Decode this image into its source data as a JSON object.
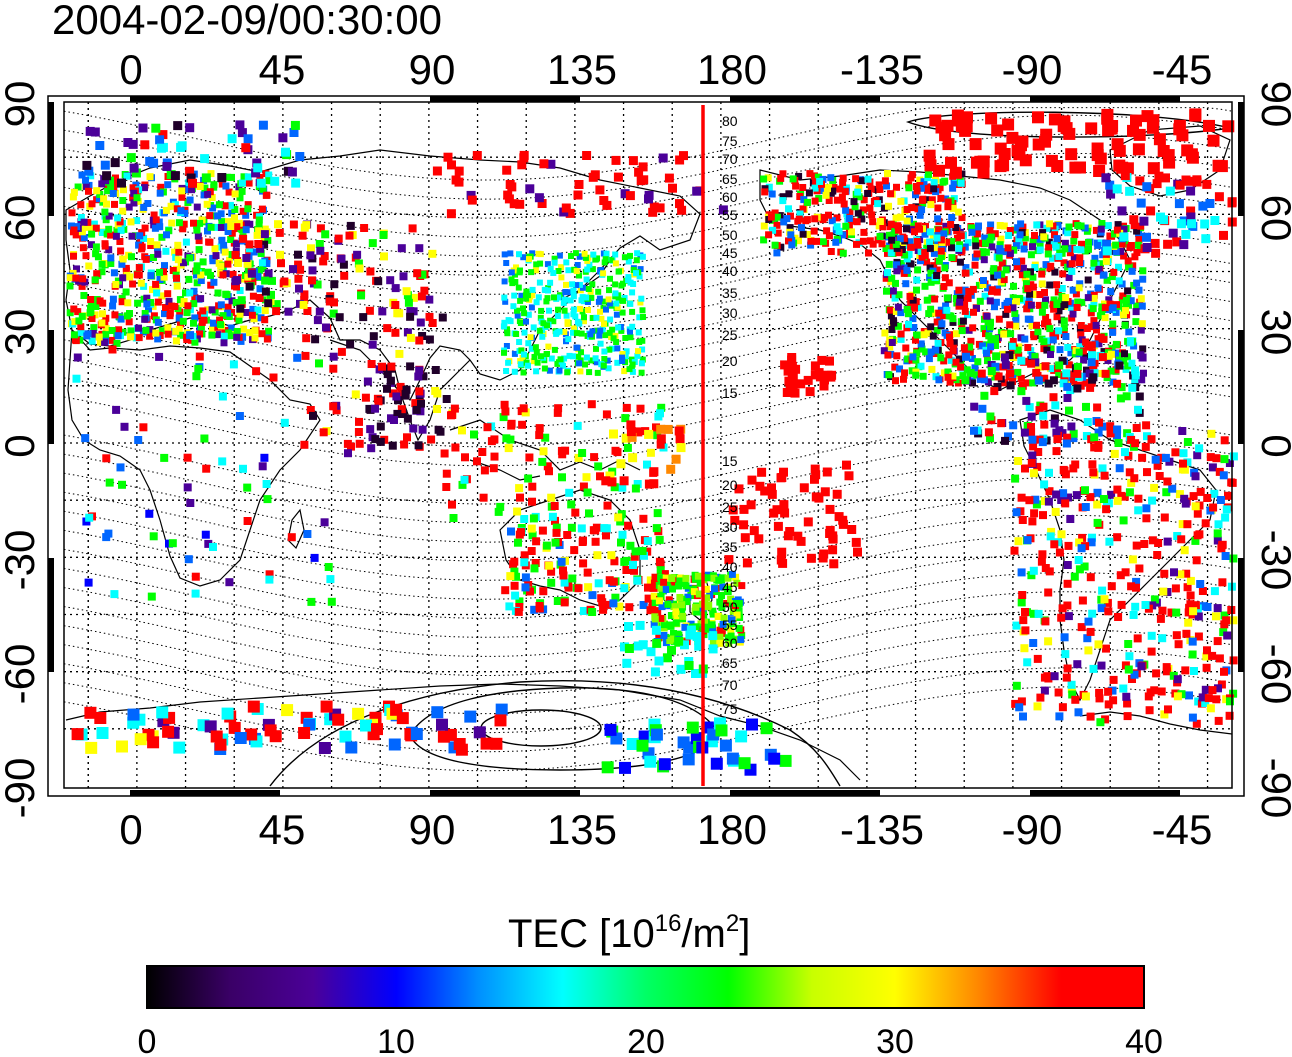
{
  "title": "2004-02-09/00:30:00",
  "axes": {
    "top_ticks": [
      "0",
      "45",
      "90",
      "135",
      "180",
      "-135",
      "-90",
      "-45"
    ],
    "bottom_ticks": [
      "0",
      "45",
      "90",
      "135",
      "180",
      "-135",
      "-90",
      "-45"
    ],
    "left_ticks": [
      "90",
      "60",
      "30",
      "0",
      "-30",
      "-60",
      "-90"
    ],
    "right_ticks": [
      "90",
      "60",
      "30",
      "0",
      "-30",
      "-60",
      "-90"
    ]
  },
  "geomag_labels_north": [
    "80",
    "75",
    "70",
    "65",
    "60",
    "55",
    "50",
    "45",
    "40",
    "35",
    "30",
    "25",
    "20",
    "15"
  ],
  "geomag_labels_south": [
    "15",
    "20",
    "25",
    "30",
    "35",
    "40",
    "45",
    "50",
    "55",
    "60",
    "65",
    "70",
    "75"
  ],
  "colorbar": {
    "label_main": "TEC  [10",
    "label_exp": "16",
    "label_mid": "/m",
    "label_exp2": "2",
    "label_end": "]",
    "ticks": [
      "0",
      "10",
      "20",
      "30",
      "40"
    ],
    "colors": [
      "#000000",
      "#3a0066",
      "#4b0099",
      "#0000ff",
      "#0090ff",
      "#00ffff",
      "#00ff66",
      "#00ff00",
      "#c8ff00",
      "#ffff00",
      "#ff8800",
      "#ff0000",
      "#ff0000"
    ]
  },
  "meridian_line": {
    "longitude": 172,
    "color": "#ff0000"
  },
  "colors": {
    "tec_red": "#ff0000",
    "grid": "#000000"
  }
}
